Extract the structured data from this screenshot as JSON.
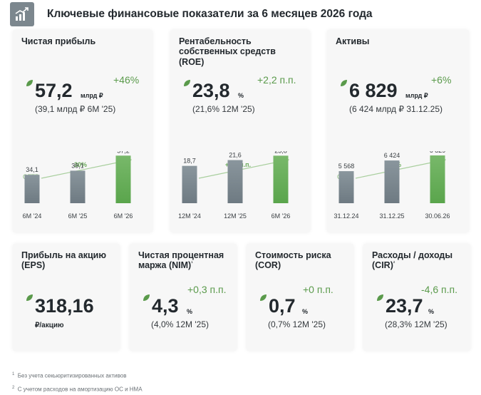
{
  "header": {
    "title": "Ключевые финансовые показатели за 6 месяцев 2026 года",
    "icon": "growth-chart-icon"
  },
  "colors": {
    "accent_green": "#5a9a4b",
    "bar_gray": "#6e7a82",
    "bar_green": "#5aa54c"
  },
  "cards": [
    {
      "id": "net-profit",
      "title": "Чистая прибыль",
      "value": "57,2",
      "unit": "млрд ₽",
      "delta": "+46%",
      "comparison": "(39,1 млрд ₽  6М '25)",
      "cagr_label": "СГТР",
      "arrow_label": "30%"
    },
    {
      "id": "roe",
      "title": "Рентабельность собственных средств (ROE)",
      "value": "23,8",
      "unit": "%",
      "delta": "+2,2 п.п.",
      "comparison": "(21,6%  12М '25)",
      "arrow_label": "+5,1 п.п."
    },
    {
      "id": "assets",
      "title": "Активы",
      "value": "6 829",
      "unit": "млрд ₽",
      "delta": "+6%",
      "comparison": "(6 424 млрд ₽  31.12.25)",
      "cagr_label": "СГТР",
      "arrow_label": "15%"
    },
    {
      "id": "eps",
      "title": "Прибыль на акцию (EPS)",
      "value": "318,16",
      "unit": "₽/акцию"
    },
    {
      "id": "nim",
      "title": "Чистая процентная маржа (NIM)",
      "title_sup": "¹",
      "value": "4,3",
      "unit": "%",
      "delta": "+0,3 п.п.",
      "comparison": "(4,0%  12М '25)"
    },
    {
      "id": "cor",
      "title": "Стоимость риска (COR)",
      "value": "0,7",
      "unit": "%",
      "delta": "+0 п.п.",
      "comparison": "(0,7%  12М '25)"
    },
    {
      "id": "cir",
      "title": "Расходы / доходы (CIR)",
      "title_sup": "²",
      "value": "23,7",
      "unit": "%",
      "delta": "-4,6 п.п.",
      "comparison": "(28,3%  12М '25)"
    }
  ],
  "chart_data": [
    {
      "type": "bar",
      "title": "Чистая прибыль",
      "categories": [
        "6М '24",
        "6М '25",
        "6М '26"
      ],
      "values": [
        34.1,
        39.1,
        57.2
      ],
      "labels": [
        "34,1",
        "39,1",
        "57,2"
      ],
      "ylim": [
        0,
        60
      ],
      "annotation": "СГТР 30%"
    },
    {
      "type": "bar",
      "title": "Рентабельность собственных средств (ROE)",
      "categories": [
        "12М '24",
        "12М '25",
        "6М '26"
      ],
      "values": [
        18.7,
        21.6,
        23.8
      ],
      "labels": [
        "18,7",
        "21,6",
        "23,8"
      ],
      "ylim": [
        0,
        25
      ],
      "annotation": "+5,1 п.п."
    },
    {
      "type": "bar",
      "title": "Активы",
      "categories": [
        "31.12.24",
        "31.12.25",
        "30.06.26"
      ],
      "values": [
        5568,
        6424,
        6829
      ],
      "labels": [
        "5 568",
        "6 424",
        "6 829"
      ],
      "ylim": [
        3000,
        7000
      ],
      "annotation": "СГТР 15%"
    }
  ],
  "footnotes": {
    "f1_mark": "1",
    "f1": "Без учета секьюритизированных активов",
    "f2_mark": "2",
    "f2": "С учетом расходов на амортизацию ОС и НМА"
  }
}
